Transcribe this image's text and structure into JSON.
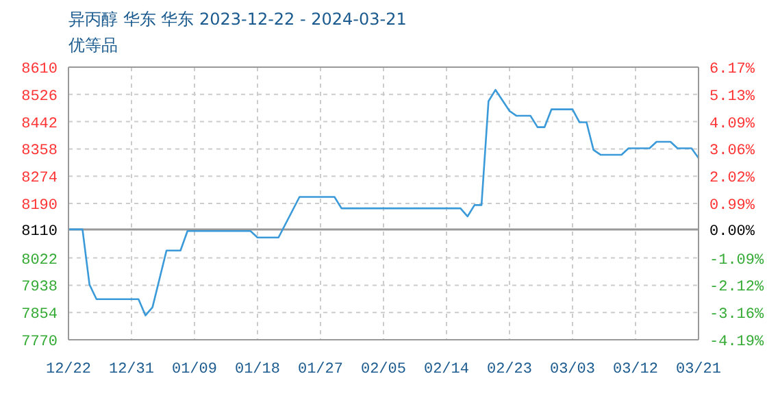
{
  "chart_data": {
    "type": "line",
    "title": "异丙醇 华东 华东 2023-12-22 - 2024-03-21",
    "subtitle": "优等品",
    "x": [
      "2023-12-22",
      "2023-12-24",
      "2023-12-25",
      "2023-12-26",
      "2024-01-01",
      "2024-01-02",
      "2024-01-03",
      "2024-01-05",
      "2024-01-07",
      "2024-01-08",
      "2024-01-17",
      "2024-01-18",
      "2024-01-21",
      "2024-01-24",
      "2024-01-29",
      "2024-01-30",
      "2024-02-16",
      "2024-02-17",
      "2024-02-18",
      "2024-02-19",
      "2024-02-20",
      "2024-02-21",
      "2024-02-23",
      "2024-02-24",
      "2024-02-26",
      "2024-02-27",
      "2024-02-28",
      "2024-02-29",
      "2024-03-03",
      "2024-03-04",
      "2024-03-05",
      "2024-03-06",
      "2024-03-07",
      "2024-03-10",
      "2024-03-11",
      "2024-03-14",
      "2024-03-15",
      "2024-03-17",
      "2024-03-18",
      "2024-03-20",
      "2024-03-21"
    ],
    "series": [
      {
        "color": "#3a9ad9",
        "values": [
          8110,
          8110,
          7940,
          7895,
          7895,
          7845,
          7870,
          8045,
          8045,
          8105,
          8105,
          8085,
          8085,
          8210,
          8210,
          8175,
          8175,
          8150,
          8185,
          8185,
          8505,
          8540,
          8475,
          8460,
          8460,
          8425,
          8425,
          8480,
          8480,
          8440,
          8440,
          8355,
          8340,
          8340,
          8360,
          8360,
          8380,
          8380,
          8360,
          8360,
          8330
        ]
      }
    ],
    "xlim": [
      "2023-12-22",
      "2024-03-21"
    ],
    "xticks": [
      {
        "value": "2023-12-22",
        "label": "12/22"
      },
      {
        "value": "2023-12-31",
        "label": "12/31"
      },
      {
        "value": "2024-01-09",
        "label": "01/09"
      },
      {
        "value": "2024-01-18",
        "label": "01/18"
      },
      {
        "value": "2024-01-27",
        "label": "01/27"
      },
      {
        "value": "2024-02-05",
        "label": "02/05"
      },
      {
        "value": "2024-02-14",
        "label": "02/14"
      },
      {
        "value": "2024-02-23",
        "label": "02/23"
      },
      {
        "value": "2024-03-03",
        "label": "03/03"
      },
      {
        "value": "2024-03-12",
        "label": "03/12"
      },
      {
        "value": "2024-03-21",
        "label": "03/21"
      }
    ],
    "ylim": [
      7770,
      8610
    ],
    "yticks": [
      7770,
      7854,
      7938,
      8022,
      8110,
      8190,
      8274,
      8358,
      8442,
      8526,
      8610
    ],
    "y2lim": [
      -4.19,
      6.17
    ],
    "y2ticks": [
      {
        "value": -4.19,
        "label": "-4.19%"
      },
      {
        "value": -3.16,
        "label": "-3.16%"
      },
      {
        "value": -2.12,
        "label": "-2.12%"
      },
      {
        "value": -1.09,
        "label": "-1.09%"
      },
      {
        "value": 0,
        "label": "0.00%"
      },
      {
        "value": 0.99,
        "label": "0.99%"
      },
      {
        "value": 2.02,
        "label": "2.02%"
      },
      {
        "value": 3.06,
        "label": "3.06%"
      },
      {
        "value": 4.09,
        "label": "4.09%"
      },
      {
        "value": 5.13,
        "label": "5.13%"
      },
      {
        "value": 6.17,
        "label": "6.17%"
      }
    ],
    "ref_lines": [
      {
        "axis": "y",
        "value": 8110,
        "color": "#999999"
      }
    ],
    "grid": true,
    "marker": "none",
    "line_style": "solid"
  }
}
